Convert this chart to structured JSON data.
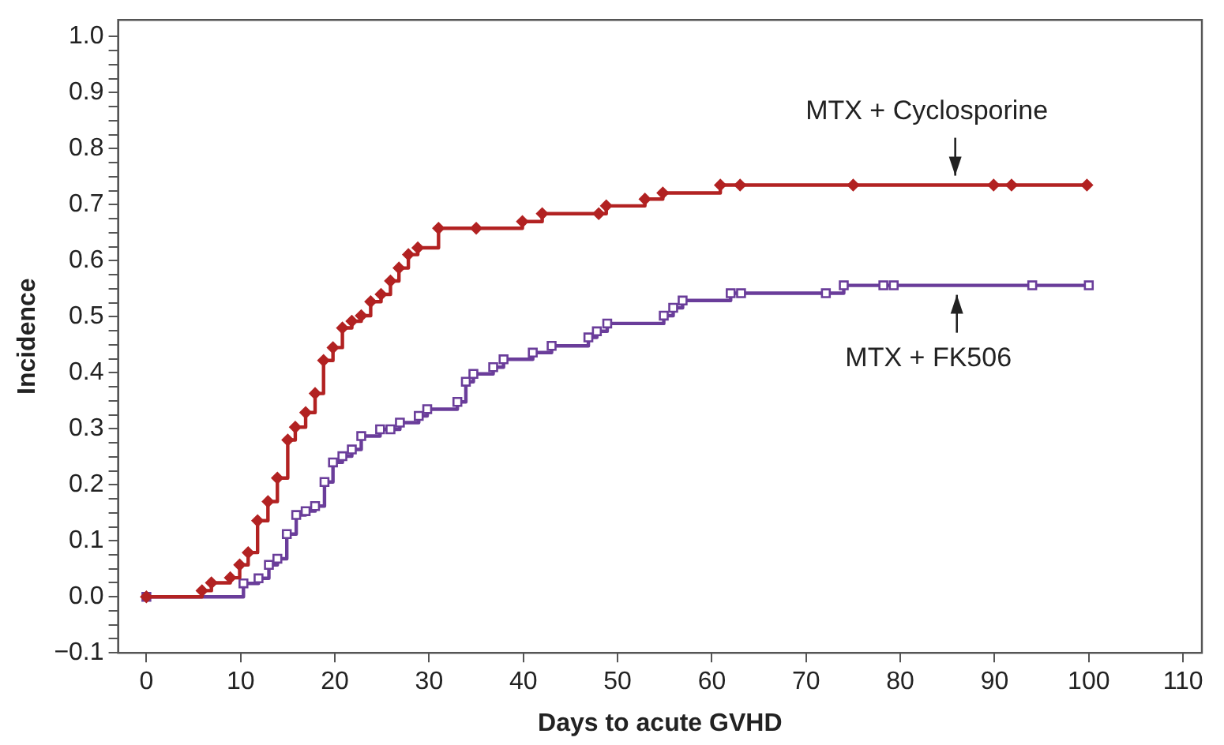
{
  "chart_data": {
    "type": "step",
    "xlabel": "Days to acute GVHD",
    "ylabel": "Incidence",
    "xlim": [
      -3,
      112
    ],
    "xticks": [
      0,
      10,
      20,
      30,
      40,
      50,
      60,
      70,
      80,
      90,
      100,
      110
    ],
    "ylim": [
      -0.1,
      1.03
    ],
    "yticks": [
      {
        "value": -0.1,
        "label": "−0.1"
      },
      {
        "value": -0.075,
        "label": null
      },
      {
        "value": -0.05,
        "label": null
      },
      {
        "value": -0.025,
        "label": null
      },
      {
        "value": 0,
        "label": "0.0"
      },
      {
        "value": 0.025,
        "label": null
      },
      {
        "value": 0.05,
        "label": null
      },
      {
        "value": 0.075,
        "label": null
      },
      0.1,
      {
        "value": 0.125,
        "label": null
      },
      {
        "value": 0.15,
        "label": null
      },
      {
        "value": 0.175,
        "label": null
      },
      0.2,
      {
        "value": 0.225,
        "label": null
      },
      {
        "value": 0.25,
        "label": null
      },
      {
        "value": 0.275,
        "label": null
      },
      0.3,
      {
        "value": 0.325,
        "label": null
      },
      {
        "value": 0.35,
        "label": null
      },
      {
        "value": 0.375,
        "label": null
      },
      0.4,
      {
        "value": 0.425,
        "label": null
      },
      {
        "value": 0.45,
        "label": null
      },
      {
        "value": 0.475,
        "label": null
      },
      0.5,
      {
        "value": 0.525,
        "label": null
      },
      {
        "value": 0.55,
        "label": null
      },
      {
        "value": 0.575,
        "label": null
      },
      0.6,
      {
        "value": 0.625,
        "label": null
      },
      {
        "value": 0.65,
        "label": null
      },
      {
        "value": 0.675,
        "label": null
      },
      0.7,
      {
        "value": 0.725,
        "label": null
      },
      {
        "value": 0.75,
        "label": null
      },
      {
        "value": 0.775,
        "label": null
      },
      0.8,
      {
        "value": 0.825,
        "label": null
      },
      {
        "value": 0.85,
        "label": null
      },
      {
        "value": 0.875,
        "label": null
      },
      0.9,
      {
        "value": 0.925,
        "label": null
      },
      {
        "value": 0.95,
        "label": null
      },
      {
        "value": 0.975,
        "label": null
      },
      {
        "value": 1,
        "label": "1.0"
      }
    ],
    "grid": false,
    "legend": false,
    "series": [
      {
        "name": "MTX + Cyclosporine",
        "color": "#b22222",
        "marker": "diamond",
        "x": [
          0,
          5.9,
          6.9,
          8.9,
          9.9,
          10.8,
          11.8,
          12.9,
          13.9,
          15.0,
          15.8,
          16.9,
          17.9,
          18.8,
          19.8,
          20.8,
          21.8,
          22.8,
          23.8,
          24.9,
          25.9,
          26.8,
          27.8,
          28.8,
          31.0,
          35.0,
          39.9,
          42.0,
          48.0,
          48.8,
          52.9,
          54.8,
          60.9,
          63.0,
          75.0,
          89.9,
          91.8,
          99.8
        ],
        "values": [
          0,
          0.011,
          0.025,
          0.034,
          0.057,
          0.079,
          0.136,
          0.17,
          0.212,
          0.28,
          0.303,
          0.329,
          0.363,
          0.422,
          0.445,
          0.48,
          0.492,
          0.502,
          0.527,
          0.54,
          0.564,
          0.587,
          0.611,
          0.623,
          0.658,
          0.658,
          0.67,
          0.684,
          0.684,
          0.698,
          0.71,
          0.721,
          0.735,
          0.735,
          0.735,
          0.735,
          0.735,
          0.735
        ]
      },
      {
        "name": "MTX + FK506",
        "color": "#6a3d9a",
        "marker": "square",
        "x": [
          0,
          10.3,
          11.9,
          13.0,
          13.9,
          14.9,
          15.9,
          16.9,
          17.9,
          18.9,
          19.8,
          20.8,
          21.8,
          22.8,
          24.8,
          25.9,
          26.9,
          28.9,
          29.8,
          33.0,
          33.9,
          34.7,
          36.8,
          37.9,
          41.0,
          43.0,
          46.9,
          47.8,
          48.9,
          54.9,
          55.9,
          56.9,
          62.0,
          63.1,
          72.1,
          74.0,
          78.2,
          79.3,
          94.0,
          100
        ],
        "values": [
          0,
          0.024,
          0.033,
          0.057,
          0.068,
          0.112,
          0.146,
          0.153,
          0.162,
          0.205,
          0.24,
          0.251,
          0.263,
          0.287,
          0.299,
          0.299,
          0.311,
          0.323,
          0.335,
          0.348,
          0.384,
          0.398,
          0.41,
          0.424,
          0.436,
          0.448,
          0.463,
          0.474,
          0.488,
          0.502,
          0.516,
          0.529,
          0.542,
          0.542,
          0.542,
          0.556,
          0.556,
          0.556,
          0.556,
          0.556
        ]
      }
    ]
  }
}
